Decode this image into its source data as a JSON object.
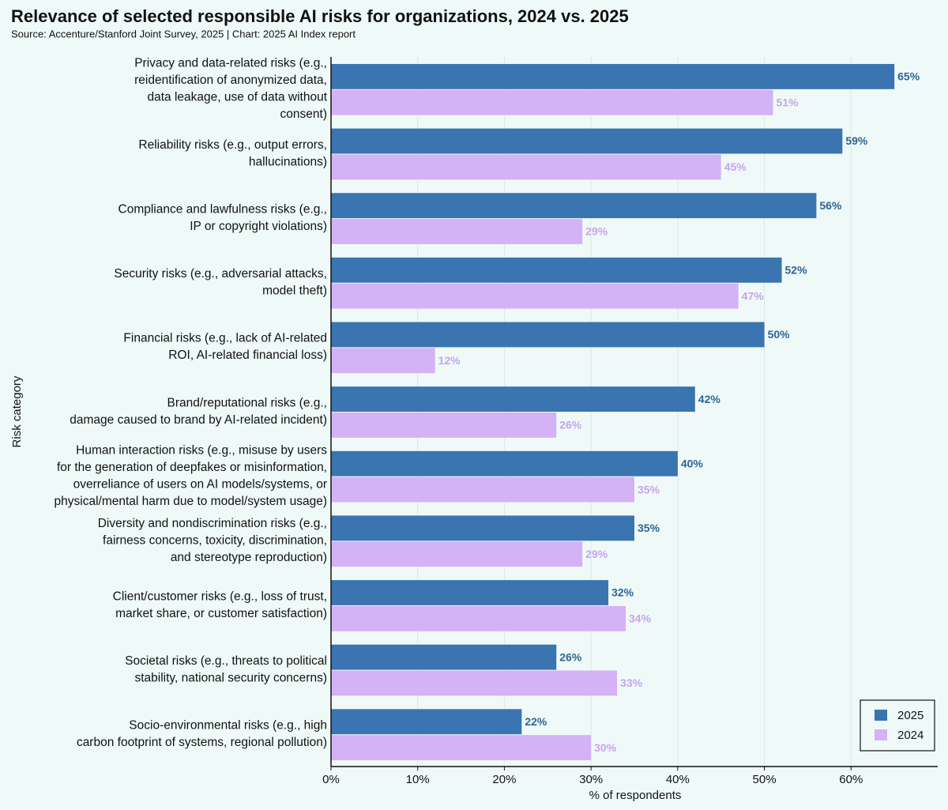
{
  "chart_data": {
    "type": "hbar",
    "title": "Relevance of selected responsible AI risks for organizations, 2024 vs. 2025",
    "subtitle": "Source: Accenture/Stanford Joint Survey, 2025 | Chart: 2025 AI Index report",
    "x_label": "% of respondents",
    "y_label": "Risk category",
    "categories": [
      [
        "Privacy and data-related risks (e.g.,",
        "reidentification of anonymized data,",
        "data leakage, use of data without",
        "consent)"
      ],
      [
        "Reliability risks (e.g., output errors,",
        "hallucinations)"
      ],
      [
        "Compliance and lawfulness risks (e.g.,",
        "IP or copyright violations)"
      ],
      [
        "Security risks (e.g., adversarial attacks,",
        "model theft)"
      ],
      [
        "Financial risks (e.g., lack of AI-related",
        "ROI, AI-related financial loss)"
      ],
      [
        "Brand/reputational risks (e.g.,",
        "damage caused to brand by AI-related incident)"
      ],
      [
        "Human interaction risks (e.g., misuse by users",
        "for the generation of deepfakes or misinformation,",
        "overreliance of users on AI models/systems, or",
        "physical/mental harm due to model/system usage)"
      ],
      [
        "Diversity and nondiscrimination risks (e.g.,",
        "fairness concerns, toxicity, discrimination,",
        "and stereotype reproduction)"
      ],
      [
        "Client/customer risks (e.g., loss of trust,",
        "market share, or customer satisfaction)"
      ],
      [
        "Societal risks (e.g., threats to political",
        "stability, national security concerns)"
      ],
      [
        "Socio-environmental risks (e.g., high",
        "carbon footprint of systems, regional pollution)"
      ]
    ],
    "series": [
      {
        "name": "2025",
        "color": "#3a74b1",
        "label_color": "#2e6496",
        "values": [
          65,
          59,
          56,
          52,
          50,
          42,
          40,
          35,
          32,
          26,
          22
        ],
        "value_labels": [
          "65%",
          "59%",
          "56%",
          "52%",
          "50%",
          "42%",
          "40%",
          "35%",
          "32%",
          "26%",
          "22%"
        ]
      },
      {
        "name": "2024",
        "color": "#d5b1f5",
        "label_color": "#c8a3ee",
        "values": [
          51,
          45,
          29,
          47,
          12,
          26,
          35,
          29,
          34,
          33,
          30
        ],
        "value_labels": [
          "51%",
          "45%",
          "29%",
          "47%",
          "12%",
          "26%",
          "35%",
          "29%",
          "34%",
          "33%",
          "30%"
        ]
      }
    ],
    "xlim": [
      0,
      70
    ],
    "xticks": [
      {
        "value": 0,
        "label": "0%"
      },
      {
        "value": 10,
        "label": "10%"
      },
      {
        "value": 20,
        "label": "20%"
      },
      {
        "value": 30,
        "label": "30%"
      },
      {
        "value": 40,
        "label": "40%"
      },
      {
        "value": 50,
        "label": "50%"
      },
      {
        "value": 60,
        "label": "60%"
      }
    ],
    "grid": true,
    "legend": "lower right"
  }
}
